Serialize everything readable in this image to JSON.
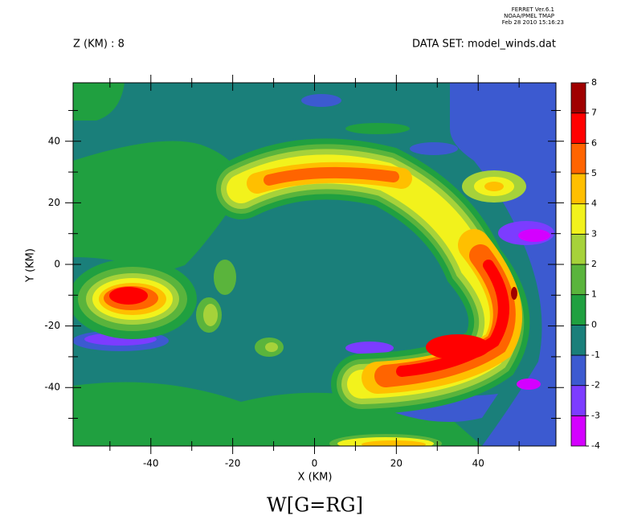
{
  "header": {
    "program": "FERRET Ver.6.1",
    "org": "NOAA/PMEL TMAP",
    "date": "Feb 28 2010 15:16:23"
  },
  "chart_data": {
    "type": "contour",
    "title": "W[G=RG]",
    "subtitle_left": "Z (KM) : 8",
    "subtitle_right": "DATA SET: model_winds.dat",
    "x_label": "X (KM)",
    "y_label": "Y (KM)",
    "xlim": [
      -59,
      59
    ],
    "ylim": [
      -59,
      59
    ],
    "xticks": [
      -40,
      -20,
      0,
      20,
      40
    ],
    "yticks": [
      -40,
      -20,
      0,
      20,
      40
    ],
    "xminorticks": [
      -50,
      -30,
      -10,
      10,
      30,
      50
    ],
    "yminorticks": [
      -50,
      -30,
      -10,
      10,
      30,
      50
    ],
    "levels": [
      -4,
      -3,
      -2,
      -1,
      0,
      1,
      2,
      3,
      4,
      5,
      6,
      7,
      8
    ],
    "colors": [
      "#d400ff",
      "#7c3cff",
      "#3c5ad0",
      "#1a7f7a",
      "#20a040",
      "#5ab43c",
      "#a6d23a",
      "#f2f21c",
      "#ffbf00",
      "#ff6400",
      "#ff0000",
      "#a00000"
    ]
  }
}
